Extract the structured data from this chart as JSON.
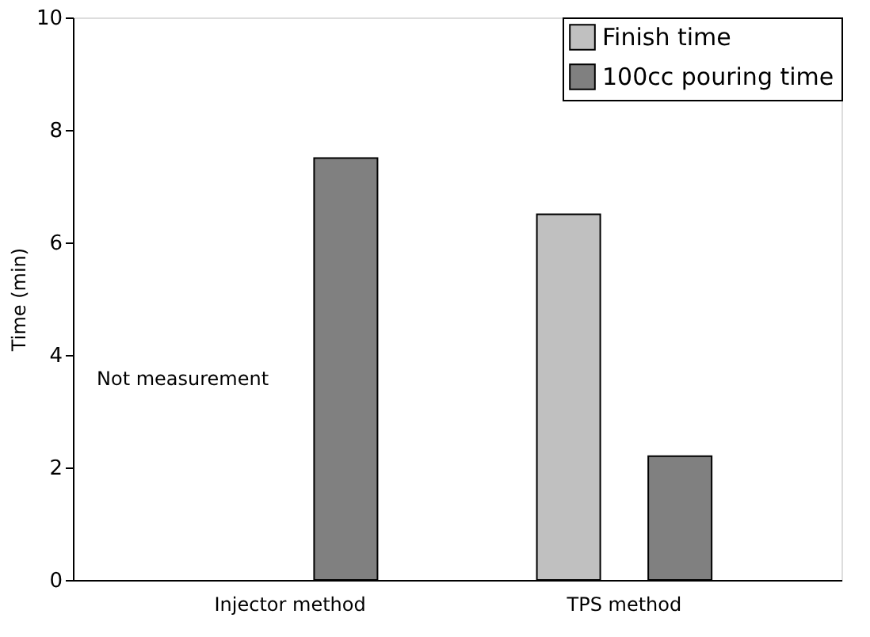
{
  "chart_data": {
    "type": "bar",
    "ylabel": "Time (min)",
    "categories": [
      "Injector method",
      "TPS method"
    ],
    "series": [
      {
        "name": "Finish time",
        "color": "#c0c0c0",
        "values": [
          null,
          6.5
        ]
      },
      {
        "name": "100cc pouring time",
        "color": "#808080",
        "values": [
          7.5,
          2.2
        ]
      }
    ],
    "ylim": [
      0,
      10
    ],
    "yticks": [
      0,
      2,
      4,
      6,
      8,
      10
    ],
    "grid": false,
    "legend": "top right",
    "annotations": [
      "Not measurement"
    ]
  }
}
